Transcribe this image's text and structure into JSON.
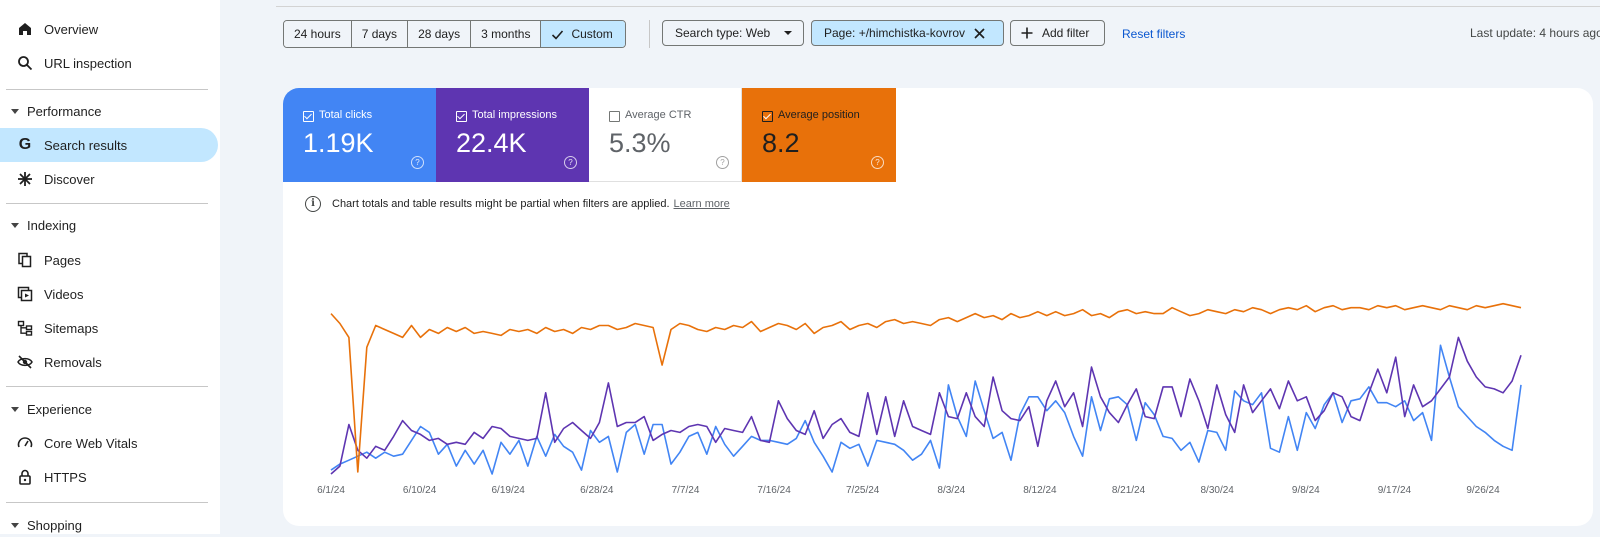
{
  "sidebar": {
    "items": [
      {
        "label": "Overview",
        "icon": "home-icon"
      },
      {
        "label": "URL inspection",
        "icon": "search-icon"
      }
    ],
    "sections": [
      {
        "label": "Performance",
        "items": [
          {
            "label": "Search results",
            "icon": "google-g-icon",
            "active": true
          },
          {
            "label": "Discover",
            "icon": "asterisk-icon"
          }
        ]
      },
      {
        "label": "Indexing",
        "items": [
          {
            "label": "Pages",
            "icon": "pages-icon"
          },
          {
            "label": "Videos",
            "icon": "videos-icon"
          },
          {
            "label": "Sitemaps",
            "icon": "sitemaps-icon"
          },
          {
            "label": "Removals",
            "icon": "removals-icon"
          }
        ]
      },
      {
        "label": "Experience",
        "items": [
          {
            "label": "Core Web Vitals",
            "icon": "gauge-icon"
          },
          {
            "label": "HTTPS",
            "icon": "lock-icon"
          }
        ]
      },
      {
        "label": "Shopping",
        "items": []
      }
    ]
  },
  "toolbar": {
    "date_ranges": [
      "24 hours",
      "7 days",
      "28 days",
      "3 months",
      "Custom"
    ],
    "selected_range": "Custom",
    "search_type": "Search type: Web",
    "page_filter": "Page: +/himchistka-kovrov",
    "add_filter": "Add filter",
    "reset": "Reset filters",
    "last_update": "Last update: 4 hours ago"
  },
  "metrics": [
    {
      "label": "Total clicks",
      "value": "1.19K",
      "checked": true,
      "color": "#4285f4"
    },
    {
      "label": "Total impressions",
      "value": "22.4K",
      "checked": true,
      "color": "#5e35b1"
    },
    {
      "label": "Average CTR",
      "value": "5.3%",
      "checked": false,
      "color": "#ffffff"
    },
    {
      "label": "Average position",
      "value": "8.2",
      "checked": true,
      "color": "#e8710a"
    }
  ],
  "notice": {
    "text": "Chart totals and table results might be partial when filters are applied.",
    "link": "Learn more"
  },
  "chart_data": {
    "type": "line",
    "x_tick_labels": [
      "6/1/24",
      "6/10/24",
      "6/19/24",
      "6/28/24",
      "7/7/24",
      "7/16/24",
      "7/25/24",
      "8/3/24",
      "8/12/24",
      "8/21/24",
      "8/30/24",
      "9/8/24",
      "9/17/24",
      "9/26/24"
    ],
    "x_start": "6/1/24",
    "x_end": "9/30/24",
    "y_scale": "independent normalized axes (no y tick labels shown)",
    "series": [
      {
        "color": "#4285f4",
        "values": [
          0.03,
          0.06,
          0.08,
          0.1,
          0.12,
          0.09,
          0.12,
          0.1,
          0.11,
          0.18,
          0.25,
          0.22,
          0.11,
          0.16,
          0.05,
          0.13,
          0.06,
          0.13,
          0.01,
          0.17,
          0.11,
          0.18,
          0.05,
          0.2,
          0.1,
          0.21,
          0.15,
          0.12,
          0.03,
          0.23,
          0.17,
          0.2,
          0.02,
          0.22,
          0.26,
          0.11,
          0.26,
          0.26,
          0.06,
          0.12,
          0.2,
          0.22,
          0.11,
          0.25,
          0.16,
          0.1,
          0.15,
          0.2,
          0.18,
          0.18,
          0.17,
          0.16,
          0.19,
          0.28,
          0.17,
          0.1,
          0.02,
          0.17,
          0.14,
          0.16,
          0.05,
          0.18,
          0.17,
          0.16,
          0.13,
          0.08,
          0.11,
          0.18,
          0.04,
          0.46,
          0.3,
          0.2,
          0.48,
          0.33,
          0.19,
          0.22,
          0.08,
          0.31,
          0.4,
          0.4,
          0.33,
          0.38,
          0.32,
          0.2,
          0.1,
          0.4,
          0.23,
          0.39,
          0.4,
          0.36,
          0.18,
          0.37,
          0.31,
          0.2,
          0.19,
          0.13,
          0.17,
          0.07,
          0.23,
          0.22,
          0.13,
          0.43,
          0.38,
          0.36,
          0.42,
          0.14,
          0.12,
          0.3,
          0.13,
          0.32,
          0.24,
          0.36,
          0.42,
          0.27,
          0.38,
          0.39,
          0.45,
          0.37,
          0.37,
          0.35,
          0.38,
          0.28,
          0.32,
          0.18,
          0.66,
          0.5,
          0.35,
          0.3,
          0.25,
          0.22,
          0.18,
          0.15,
          0.13,
          0.46
        ],
        "name": ""
      },
      {
        "color": "#5e35b1",
        "values": [
          0.01,
          0.05,
          0.26,
          0.13,
          0.09,
          0.15,
          0.13,
          0.2,
          0.28,
          0.23,
          0.21,
          0.18,
          0.19,
          0.16,
          0.17,
          0.16,
          0.22,
          0.19,
          0.25,
          0.24,
          0.2,
          0.19,
          0.18,
          0.19,
          0.42,
          0.17,
          0.24,
          0.27,
          0.23,
          0.19,
          0.27,
          0.47,
          0.25,
          0.27,
          0.27,
          0.3,
          0.18,
          0.21,
          0.23,
          0.22,
          0.25,
          0.26,
          0.25,
          0.17,
          0.24,
          0.23,
          0.22,
          0.3,
          0.18,
          0.17,
          0.38,
          0.29,
          0.23,
          0.21,
          0.33,
          0.19,
          0.26,
          0.29,
          0.22,
          0.2,
          0.42,
          0.21,
          0.4,
          0.2,
          0.38,
          0.25,
          0.23,
          0.21,
          0.42,
          0.3,
          0.29,
          0.42,
          0.3,
          0.25,
          0.5,
          0.33,
          0.29,
          0.28,
          0.35,
          0.15,
          0.38,
          0.48,
          0.35,
          0.42,
          0.25,
          0.55,
          0.4,
          0.32,
          0.27,
          0.36,
          0.44,
          0.3,
          0.29,
          0.45,
          0.45,
          0.3,
          0.49,
          0.38,
          0.24,
          0.46,
          0.31,
          0.22,
          0.46,
          0.32,
          0.38,
          0.44,
          0.34,
          0.48,
          0.38,
          0.4,
          0.28,
          0.33,
          0.42,
          0.4,
          0.3,
          0.28,
          0.42,
          0.54,
          0.42,
          0.6,
          0.3,
          0.46,
          0.35,
          0.38,
          0.44,
          0.5,
          0.7,
          0.58,
          0.5,
          0.45,
          0.44,
          0.42,
          0.48,
          0.61
        ],
        "name": ""
      },
      {
        "color": "#e8710a",
        "values": [
          0.82,
          0.77,
          0.7,
          0.02,
          0.65,
          0.76,
          0.74,
          0.72,
          0.7,
          0.76,
          0.7,
          0.74,
          0.72,
          0.75,
          0.73,
          0.75,
          0.72,
          0.73,
          0.72,
          0.71,
          0.74,
          0.73,
          0.74,
          0.72,
          0.75,
          0.73,
          0.74,
          0.72,
          0.75,
          0.74,
          0.76,
          0.76,
          0.74,
          0.75,
          0.77,
          0.76,
          0.75,
          0.56,
          0.74,
          0.77,
          0.76,
          0.74,
          0.73,
          0.75,
          0.74,
          0.76,
          0.75,
          0.78,
          0.73,
          0.75,
          0.77,
          0.76,
          0.74,
          0.77,
          0.72,
          0.75,
          0.76,
          0.78,
          0.74,
          0.76,
          0.77,
          0.75,
          0.78,
          0.79,
          0.77,
          0.78,
          0.77,
          0.76,
          0.79,
          0.8,
          0.78,
          0.8,
          0.82,
          0.8,
          0.81,
          0.79,
          0.82,
          0.8,
          0.81,
          0.83,
          0.81,
          0.83,
          0.81,
          0.82,
          0.84,
          0.81,
          0.82,
          0.8,
          0.83,
          0.84,
          0.82,
          0.83,
          0.82,
          0.82,
          0.85,
          0.83,
          0.81,
          0.82,
          0.84,
          0.83,
          0.82,
          0.84,
          0.83,
          0.85,
          0.84,
          0.82,
          0.84,
          0.85,
          0.84,
          0.86,
          0.83,
          0.85,
          0.86,
          0.84,
          0.85,
          0.85,
          0.84,
          0.86,
          0.85,
          0.86,
          0.84,
          0.85,
          0.86,
          0.85,
          0.84,
          0.86,
          0.85,
          0.84,
          0.86,
          0.85,
          0.86,
          0.87,
          0.86,
          0.85
        ],
        "name": ""
      }
    ],
    "grid": false,
    "legend": "none"
  }
}
